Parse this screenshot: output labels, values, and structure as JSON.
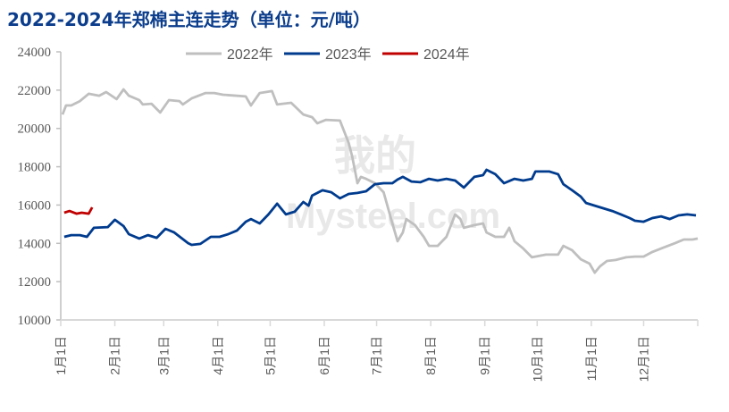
{
  "chart_data": {
    "type": "line",
    "title": "2022-2024年郑棉主连走势（单位：元/吨）",
    "xlabel": "",
    "ylabel": "",
    "ylim": [
      10000,
      24000
    ],
    "xlim_days": [
      0,
      365
    ],
    "yticks": [
      "10000",
      "12000",
      "14000",
      "16000",
      "18000",
      "20000",
      "22000",
      "24000"
    ],
    "ytick_values": [
      10000,
      12000,
      14000,
      16000,
      18000,
      20000,
      22000,
      24000
    ],
    "xticks": [
      "1月1日",
      "2月1日",
      "3月1日",
      "4月1日",
      "5月1日",
      "6月1日",
      "7月1日",
      "8月1日",
      "9月1日",
      "10月1日",
      "11月1日",
      "12月1日"
    ],
    "xtick_days": [
      0,
      31,
      59,
      90,
      120,
      151,
      181,
      212,
      243,
      273,
      304,
      334,
      365
    ],
    "grid": false,
    "legend_position": "top",
    "watermark": "我的钢铁 Mysteel.com",
    "series": [
      {
        "name": "2022年",
        "color": "#bfbfbf",
        "points": [
          [
            1,
            20730
          ],
          [
            3,
            21200
          ],
          [
            6,
            21200
          ],
          [
            11,
            21430
          ],
          [
            16,
            21810
          ],
          [
            22,
            21710
          ],
          [
            26,
            21900
          ],
          [
            32,
            21530
          ],
          [
            36,
            22040
          ],
          [
            39,
            21710
          ],
          [
            45,
            21480
          ],
          [
            47,
            21250
          ],
          [
            52,
            21290
          ],
          [
            57,
            20830
          ],
          [
            62,
            21480
          ],
          [
            68,
            21430
          ],
          [
            70,
            21250
          ],
          [
            75,
            21570
          ],
          [
            83,
            21850
          ],
          [
            88,
            21850
          ],
          [
            93,
            21760
          ],
          [
            106,
            21670
          ],
          [
            109,
            21200
          ],
          [
            114,
            21850
          ],
          [
            121,
            21950
          ],
          [
            124,
            21250
          ],
          [
            132,
            21340
          ],
          [
            139,
            20730
          ],
          [
            144,
            20590
          ],
          [
            147,
            20270
          ],
          [
            152,
            20450
          ],
          [
            160,
            20410
          ],
          [
            165,
            19240
          ],
          [
            167,
            18540
          ],
          [
            170,
            17140
          ],
          [
            172,
            17470
          ],
          [
            175,
            17370
          ],
          [
            180,
            17140
          ],
          [
            185,
            16670
          ],
          [
            190,
            15040
          ],
          [
            193,
            14110
          ],
          [
            196,
            14570
          ],
          [
            198,
            15270
          ],
          [
            203,
            14950
          ],
          [
            208,
            14340
          ],
          [
            211,
            13870
          ],
          [
            216,
            13870
          ],
          [
            221,
            14340
          ],
          [
            226,
            15510
          ],
          [
            229,
            15270
          ],
          [
            231,
            14810
          ],
          [
            237,
            14950
          ],
          [
            242,
            15040
          ],
          [
            244,
            14570
          ],
          [
            249,
            14340
          ],
          [
            254,
            14340
          ],
          [
            257,
            14810
          ],
          [
            260,
            14110
          ],
          [
            265,
            13730
          ],
          [
            270,
            13270
          ],
          [
            278,
            13410
          ],
          [
            285,
            13410
          ],
          [
            288,
            13870
          ],
          [
            293,
            13640
          ],
          [
            298,
            13170
          ],
          [
            303,
            12940
          ],
          [
            306,
            12470
          ],
          [
            309,
            12800
          ],
          [
            313,
            13080
          ],
          [
            318,
            13130
          ],
          [
            324,
            13270
          ],
          [
            329,
            13310
          ],
          [
            334,
            13310
          ],
          [
            339,
            13550
          ],
          [
            344,
            13730
          ],
          [
            352,
            14010
          ],
          [
            357,
            14200
          ],
          [
            362,
            14200
          ],
          [
            365,
            14250
          ]
        ]
      },
      {
        "name": "2023年",
        "color": "#003b8e",
        "points": [
          [
            2,
            14340
          ],
          [
            6,
            14430
          ],
          [
            11,
            14430
          ],
          [
            15,
            14340
          ],
          [
            19,
            14810
          ],
          [
            27,
            14850
          ],
          [
            31,
            15230
          ],
          [
            36,
            14900
          ],
          [
            39,
            14480
          ],
          [
            45,
            14250
          ],
          [
            50,
            14430
          ],
          [
            55,
            14290
          ],
          [
            60,
            14760
          ],
          [
            65,
            14570
          ],
          [
            69,
            14290
          ],
          [
            73,
            14010
          ],
          [
            75,
            13920
          ],
          [
            80,
            13970
          ],
          [
            86,
            14340
          ],
          [
            91,
            14340
          ],
          [
            96,
            14480
          ],
          [
            101,
            14670
          ],
          [
            106,
            15130
          ],
          [
            109,
            15270
          ],
          [
            114,
            15040
          ],
          [
            119,
            15510
          ],
          [
            124,
            16070
          ],
          [
            129,
            15510
          ],
          [
            134,
            15650
          ],
          [
            139,
            16160
          ],
          [
            142,
            15970
          ],
          [
            144,
            16490
          ],
          [
            150,
            16770
          ],
          [
            155,
            16670
          ],
          [
            160,
            16350
          ],
          [
            165,
            16580
          ],
          [
            170,
            16630
          ],
          [
            175,
            16720
          ],
          [
            180,
            17090
          ],
          [
            185,
            17140
          ],
          [
            190,
            17140
          ],
          [
            193,
            17330
          ],
          [
            196,
            17470
          ],
          [
            201,
            17230
          ],
          [
            206,
            17190
          ],
          [
            211,
            17370
          ],
          [
            216,
            17280
          ],
          [
            221,
            17370
          ],
          [
            226,
            17280
          ],
          [
            231,
            16910
          ],
          [
            237,
            17470
          ],
          [
            242,
            17560
          ],
          [
            244,
            17840
          ],
          [
            249,
            17610
          ],
          [
            254,
            17140
          ],
          [
            260,
            17370
          ],
          [
            265,
            17280
          ],
          [
            270,
            17370
          ],
          [
            272,
            17750
          ],
          [
            280,
            17750
          ],
          [
            285,
            17610
          ],
          [
            288,
            17090
          ],
          [
            293,
            16770
          ],
          [
            298,
            16440
          ],
          [
            301,
            16110
          ],
          [
            306,
            15970
          ],
          [
            311,
            15830
          ],
          [
            316,
            15690
          ],
          [
            321,
            15510
          ],
          [
            326,
            15320
          ],
          [
            329,
            15180
          ],
          [
            334,
            15130
          ],
          [
            339,
            15320
          ],
          [
            344,
            15410
          ],
          [
            349,
            15270
          ],
          [
            354,
            15460
          ],
          [
            359,
            15510
          ],
          [
            364,
            15460
          ]
        ]
      },
      {
        "name": "2024年",
        "color": "#c00000",
        "points": [
          [
            2,
            15600
          ],
          [
            5,
            15690
          ],
          [
            9,
            15550
          ],
          [
            12,
            15600
          ],
          [
            16,
            15550
          ],
          [
            18,
            15880
          ]
        ]
      }
    ]
  }
}
